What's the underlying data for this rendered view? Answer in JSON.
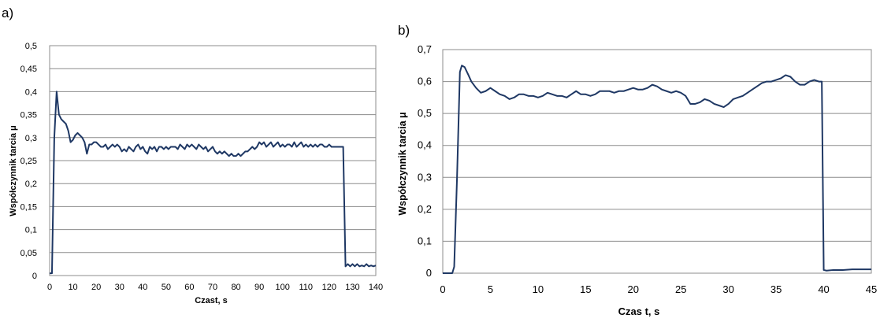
{
  "chart_data": [
    {
      "type": "line",
      "panel_label": "a)",
      "xlabel": "Czast, s",
      "ylabel": "Współczynnik tarcia μ",
      "xlim": [
        0,
        140
      ],
      "ylim": [
        0,
        0.5
      ],
      "x_ticks": [
        "0",
        "10",
        "20",
        "30",
        "40",
        "50",
        "60",
        "70",
        "80",
        "90",
        "100",
        "110",
        "120",
        "130",
        "140"
      ],
      "y_ticks": [
        "0",
        "0,05",
        "0,1",
        "0,15",
        "0,2",
        "0,25",
        "0,3",
        "0,35",
        "0,4",
        "0,45",
        "0,5"
      ],
      "grid": true,
      "color": "#1f3864",
      "series": [
        {
          "x": [
            0,
            1,
            2,
            3,
            4,
            5,
            6,
            7,
            8,
            9,
            10,
            11,
            12,
            13,
            14,
            15,
            16,
            17,
            18,
            19,
            20,
            21,
            22,
            23,
            24,
            25,
            26,
            27,
            28,
            29,
            30,
            31,
            32,
            33,
            34,
            35,
            36,
            37,
            38,
            39,
            40,
            41,
            42,
            43,
            44,
            45,
            46,
            47,
            48,
            49,
            50,
            51,
            52,
            53,
            54,
            55,
            56,
            57,
            58,
            59,
            60,
            61,
            62,
            63,
            64,
            65,
            66,
            67,
            68,
            69,
            70,
            71,
            72,
            73,
            74,
            75,
            76,
            77,
            78,
            79,
            80,
            81,
            82,
            83,
            84,
            85,
            86,
            87,
            88,
            89,
            90,
            91,
            92,
            93,
            94,
            95,
            96,
            97,
            98,
            99,
            100,
            101,
            102,
            103,
            104,
            105,
            106,
            107,
            108,
            109,
            110,
            111,
            112,
            113,
            114,
            115,
            116,
            117,
            118,
            119,
            120,
            121,
            122,
            123,
            124,
            125,
            126,
            127,
            128,
            129,
            130,
            131,
            132,
            133,
            134,
            135,
            136,
            137,
            138,
            139,
            140
          ],
          "y": [
            0.005,
            0.005,
            0.3,
            0.4,
            0.35,
            0.34,
            0.335,
            0.33,
            0.315,
            0.29,
            0.295,
            0.305,
            0.31,
            0.305,
            0.3,
            0.29,
            0.265,
            0.285,
            0.285,
            0.29,
            0.29,
            0.285,
            0.28,
            0.28,
            0.285,
            0.275,
            0.28,
            0.285,
            0.28,
            0.285,
            0.28,
            0.27,
            0.275,
            0.27,
            0.28,
            0.275,
            0.27,
            0.28,
            0.285,
            0.275,
            0.28,
            0.27,
            0.265,
            0.28,
            0.275,
            0.28,
            0.27,
            0.28,
            0.28,
            0.275,
            0.28,
            0.275,
            0.28,
            0.28,
            0.28,
            0.275,
            0.285,
            0.28,
            0.275,
            0.285,
            0.28,
            0.285,
            0.28,
            0.275,
            0.285,
            0.28,
            0.275,
            0.28,
            0.27,
            0.275,
            0.28,
            0.27,
            0.265,
            0.27,
            0.265,
            0.27,
            0.265,
            0.26,
            0.265,
            0.26,
            0.26,
            0.265,
            0.26,
            0.265,
            0.27,
            0.27,
            0.275,
            0.28,
            0.275,
            0.28,
            0.29,
            0.285,
            0.29,
            0.28,
            0.285,
            0.29,
            0.28,
            0.285,
            0.29,
            0.28,
            0.285,
            0.28,
            0.285,
            0.285,
            0.28,
            0.29,
            0.28,
            0.285,
            0.29,
            0.28,
            0.285,
            0.28,
            0.285,
            0.28,
            0.285,
            0.28,
            0.285,
            0.285,
            0.28,
            0.28,
            0.285,
            0.28,
            0.28,
            0.28,
            0.28,
            0.28,
            0.28,
            0.02,
            0.025,
            0.02,
            0.025,
            0.02,
            0.025,
            0.02,
            0.022,
            0.02,
            0.025,
            0.02,
            0.022,
            0.02,
            0.022
          ]
        }
      ]
    },
    {
      "type": "line",
      "panel_label": "b)",
      "xlabel": "Czas t, s",
      "ylabel": "Współczynnik tarcia μ",
      "xlim": [
        0,
        45
      ],
      "ylim": [
        0,
        0.7
      ],
      "x_ticks": [
        "0",
        "5",
        "10",
        "15",
        "20",
        "25",
        "30",
        "35",
        "40",
        "45"
      ],
      "y_ticks": [
        "0",
        "0,1",
        "0,2",
        "0,3",
        "0,4",
        "0,5",
        "0,6",
        "0,7"
      ],
      "grid": true,
      "color": "#1f3864",
      "series": [
        {
          "x": [
            0,
            1,
            1.2,
            1.5,
            1.8,
            2,
            2.3,
            2.7,
            3,
            3.5,
            4,
            4.5,
            5,
            5.5,
            6,
            6.5,
            7,
            7.5,
            8,
            8.5,
            9,
            9.5,
            10,
            10.5,
            11,
            11.5,
            12,
            12.5,
            13,
            13.5,
            14,
            14.5,
            15,
            15.5,
            16,
            16.5,
            17,
            17.5,
            18,
            18.5,
            19,
            19.5,
            20,
            20.5,
            21,
            21.5,
            22,
            22.5,
            23,
            23.5,
            24,
            24.5,
            25,
            25.5,
            26,
            26.5,
            27,
            27.5,
            28,
            28.5,
            29,
            29.5,
            30,
            30.5,
            31,
            31.5,
            32,
            32.5,
            33,
            33.5,
            34,
            34.5,
            35,
            35.5,
            36,
            36.5,
            37,
            37.5,
            38,
            38.5,
            39,
            39.5,
            39.8,
            40,
            40.3,
            41,
            42,
            43,
            44,
            45
          ],
          "y": [
            0,
            0,
            0.02,
            0.3,
            0.63,
            0.65,
            0.645,
            0.62,
            0.6,
            0.58,
            0.565,
            0.57,
            0.58,
            0.57,
            0.56,
            0.555,
            0.545,
            0.55,
            0.56,
            0.56,
            0.555,
            0.555,
            0.55,
            0.555,
            0.565,
            0.56,
            0.555,
            0.555,
            0.55,
            0.56,
            0.57,
            0.56,
            0.56,
            0.555,
            0.56,
            0.57,
            0.57,
            0.57,
            0.565,
            0.57,
            0.57,
            0.575,
            0.58,
            0.575,
            0.575,
            0.58,
            0.59,
            0.585,
            0.575,
            0.57,
            0.565,
            0.57,
            0.565,
            0.555,
            0.53,
            0.53,
            0.535,
            0.545,
            0.54,
            0.53,
            0.525,
            0.52,
            0.53,
            0.545,
            0.55,
            0.555,
            0.565,
            0.575,
            0.585,
            0.595,
            0.6,
            0.6,
            0.605,
            0.61,
            0.62,
            0.615,
            0.6,
            0.59,
            0.59,
            0.6,
            0.605,
            0.6,
            0.6,
            0.01,
            0.008,
            0.01,
            0.01,
            0.012,
            0.012,
            0.012
          ]
        }
      ]
    }
  ]
}
